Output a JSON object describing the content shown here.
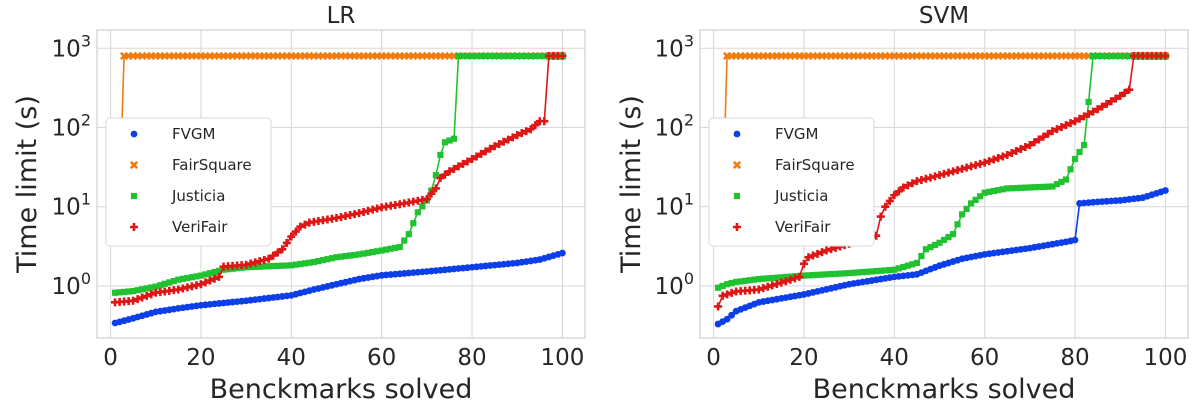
{
  "colors": {
    "FVGM": "#0d3fe8",
    "FairSquare": "#f07c10",
    "Justicia": "#21c230",
    "VeriFair": "#df1616",
    "grid": "#d9d9d9",
    "frame": "#cfcfcf",
    "text": "#262626"
  },
  "markers": {
    "FVGM": "circle",
    "FairSquare": "x",
    "Justicia": "square",
    "VeriFair": "plus"
  },
  "chart_data": [
    {
      "type": "line",
      "title": "LR",
      "xlabel": "Benckmarks solved",
      "ylabel": "Time limit (s)",
      "xlim": [
        -3,
        105
      ],
      "ylim": [
        0.22,
        1700
      ],
      "yscale": "log",
      "xticks": [
        "0",
        "20",
        "40",
        "60",
        "80",
        "100"
      ],
      "yticks": [
        "10^0",
        "10^1",
        "10^2",
        "10^3"
      ],
      "grid": true,
      "legend_position": "center-left",
      "series": [
        {
          "name": "FVGM",
          "n": 100,
          "points": [
            [
              1,
              0.34
            ],
            [
              5,
              0.39
            ],
            [
              10,
              0.47
            ],
            [
              15,
              0.52
            ],
            [
              20,
              0.57
            ],
            [
              30,
              0.65
            ],
            [
              40,
              0.76
            ],
            [
              45,
              0.9
            ],
            [
              50,
              1.05
            ],
            [
              55,
              1.22
            ],
            [
              60,
              1.36
            ],
            [
              70,
              1.52
            ],
            [
              80,
              1.72
            ],
            [
              90,
              1.95
            ],
            [
              95,
              2.15
            ],
            [
              100,
              2.6
            ]
          ]
        },
        {
          "name": "FairSquare",
          "n": 100,
          "points": [
            [
              1,
              13
            ],
            [
              2,
              14
            ],
            [
              3,
              800
            ],
            [
              100,
              800
            ]
          ]
        },
        {
          "name": "Justicia",
          "n": 76,
          "points": [
            [
              1,
              0.82
            ],
            [
              5,
              0.86
            ],
            [
              10,
              0.98
            ],
            [
              15,
              1.2
            ],
            [
              20,
              1.35
            ],
            [
              25,
              1.6
            ],
            [
              30,
              1.72
            ],
            [
              40,
              1.82
            ],
            [
              45,
              2.0
            ],
            [
              50,
              2.3
            ],
            [
              55,
              2.5
            ],
            [
              60,
              2.8
            ],
            [
              64,
              3.1
            ],
            [
              66,
              4.5
            ],
            [
              68,
              8.5
            ],
            [
              70,
              12
            ],
            [
              71,
              16
            ],
            [
              72,
              25
            ],
            [
              73,
              45
            ],
            [
              74,
              65
            ],
            [
              76,
              72
            ]
          ],
          "tail": [
            [
              77,
              800
            ],
            [
              100,
              800
            ]
          ]
        },
        {
          "name": "VeriFair",
          "n": 96,
          "points": [
            [
              1,
              0.62
            ],
            [
              5,
              0.65
            ],
            [
              10,
              0.82
            ],
            [
              15,
              0.9
            ],
            [
              20,
              1.05
            ],
            [
              24,
              1.3
            ],
            [
              25,
              1.75
            ],
            [
              30,
              1.85
            ],
            [
              35,
              2.2
            ],
            [
              38,
              2.9
            ],
            [
              40,
              4.2
            ],
            [
              42,
              5.6
            ],
            [
              44,
              6.3
            ],
            [
              50,
              7.2
            ],
            [
              55,
              8.3
            ],
            [
              60,
              9.8
            ],
            [
              65,
              11
            ],
            [
              70,
              12.5
            ],
            [
              72,
              17
            ],
            [
              73,
              23
            ],
            [
              75,
              28
            ],
            [
              80,
              40
            ],
            [
              85,
              58
            ],
            [
              90,
              80
            ],
            [
              93,
              95
            ],
            [
              95,
              120
            ],
            [
              96,
              120
            ]
          ],
          "tail": [
            [
              97,
              800
            ],
            [
              100,
              800
            ]
          ]
        }
      ]
    },
    {
      "type": "line",
      "title": "SVM",
      "xlabel": "Benckmarks solved",
      "ylabel": "Time limit (s)",
      "xlim": [
        -3,
        105
      ],
      "ylim": [
        0.22,
        1700
      ],
      "yscale": "log",
      "xticks": [
        "0",
        "20",
        "40",
        "60",
        "80",
        "100"
      ],
      "yticks": [
        "10^0",
        "10^1",
        "10^2",
        "10^3"
      ],
      "grid": true,
      "legend_position": "center-left",
      "series": [
        {
          "name": "FVGM",
          "n": 100,
          "points": [
            [
              1,
              0.33
            ],
            [
              3,
              0.38
            ],
            [
              5,
              0.48
            ],
            [
              10,
              0.62
            ],
            [
              20,
              0.78
            ],
            [
              30,
              1.05
            ],
            [
              40,
              1.3
            ],
            [
              45,
              1.4
            ],
            [
              50,
              1.8
            ],
            [
              55,
              2.2
            ],
            [
              60,
              2.5
            ],
            [
              70,
              3.0
            ],
            [
              78,
              3.6
            ],
            [
              80,
              3.8
            ],
            [
              81,
              11
            ],
            [
              85,
              11.5
            ],
            [
              90,
              12
            ],
            [
              95,
              13
            ],
            [
              100,
              16
            ]
          ]
        },
        {
          "name": "FairSquare",
          "n": 100,
          "points": [
            [
              1,
              10
            ],
            [
              2,
              10.5
            ],
            [
              3,
              800
            ],
            [
              100,
              800
            ]
          ]
        },
        {
          "name": "Justicia",
          "n": 83,
          "points": [
            [
              1,
              0.95
            ],
            [
              3,
              1.05
            ],
            [
              5,
              1.12
            ],
            [
              10,
              1.22
            ],
            [
              20,
              1.35
            ],
            [
              30,
              1.45
            ],
            [
              40,
              1.6
            ],
            [
              45,
              1.95
            ],
            [
              47,
              2.9
            ],
            [
              50,
              3.5
            ],
            [
              53,
              4.5
            ],
            [
              55,
              8
            ],
            [
              57,
              11
            ],
            [
              60,
              15
            ],
            [
              65,
              17
            ],
            [
              75,
              18
            ],
            [
              78,
              22
            ],
            [
              80,
              40
            ],
            [
              82,
              60
            ],
            [
              83,
              210
            ]
          ],
          "tail": [
            [
              84,
              800
            ],
            [
              100,
              800
            ]
          ]
        },
        {
          "name": "VeriFair",
          "n": 92,
          "points": [
            [
              1,
              0.55
            ],
            [
              2,
              0.75
            ],
            [
              5,
              0.85
            ],
            [
              10,
              0.9
            ],
            [
              15,
              1.1
            ],
            [
              19,
              1.3
            ],
            [
              20,
              1.9
            ],
            [
              21,
              2.3
            ],
            [
              25,
              2.8
            ],
            [
              30,
              3.4
            ],
            [
              35,
              4.2
            ],
            [
              36,
              4.3
            ],
            [
              37,
              7.5
            ],
            [
              38,
              10
            ],
            [
              40,
              14
            ],
            [
              42,
              17.5
            ],
            [
              45,
              21
            ],
            [
              50,
              25
            ],
            [
              55,
              30
            ],
            [
              60,
              36
            ],
            [
              65,
              45
            ],
            [
              70,
              60
            ],
            [
              75,
              90
            ],
            [
              80,
              120
            ],
            [
              85,
              170
            ],
            [
              90,
              250
            ],
            [
              92,
              300
            ]
          ],
          "tail": [
            [
              93,
              800
            ],
            [
              100,
              800
            ]
          ]
        }
      ]
    }
  ]
}
